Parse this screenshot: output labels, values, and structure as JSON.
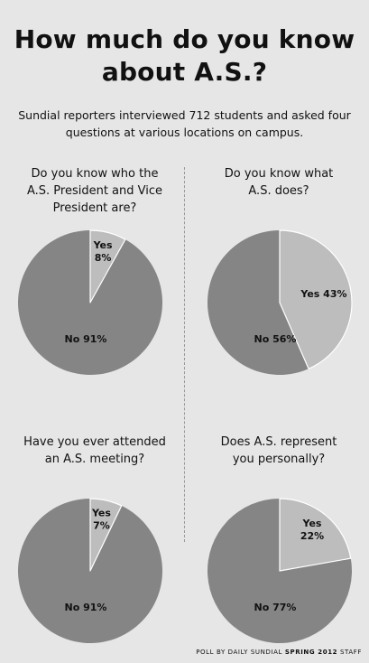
{
  "header": {
    "title_line1": "How much do you know",
    "title_line2": "about A.S.?",
    "subtitle_line1": "Sundial reporters interviewed 712 students and asked four",
    "subtitle_line2": "questions at various locations on campus."
  },
  "colors": {
    "background": "#e6e6e6",
    "no_slice": "#858585",
    "yes_slice": "#bdbdbd",
    "slice_edge": "#ffffff"
  },
  "chart_data": [
    {
      "type": "pie",
      "title_lines": [
        "Do you know who the",
        "A.S. President and Vice",
        "President are?"
      ],
      "slices": [
        {
          "label": "Yes",
          "value_label": "8%",
          "value": 8
        },
        {
          "label": "No",
          "value_label": "91%",
          "value": 91
        }
      ]
    },
    {
      "type": "pie",
      "title_lines": [
        "Do you know what",
        "A.S. does?"
      ],
      "slices": [
        {
          "label": "Yes",
          "value_label": "43%",
          "value": 43
        },
        {
          "label": "No",
          "value_label": "56%",
          "value": 56
        }
      ]
    },
    {
      "type": "pie",
      "title_lines": [
        "Have you ever attended",
        "an A.S. meeting?"
      ],
      "slices": [
        {
          "label": "Yes",
          "value_label": "7%",
          "value": 7
        },
        {
          "label": "No",
          "value_label": "91%",
          "value": 91
        }
      ]
    },
    {
      "type": "pie",
      "title_lines": [
        "Does A.S. represent",
        "you personally?"
      ],
      "slices": [
        {
          "label": "Yes",
          "value_label": "22%",
          "value": 22
        },
        {
          "label": "No",
          "value_label": "77%",
          "value": 77
        }
      ]
    }
  ],
  "footer": {
    "credit_part1": "POLL BY DAILY SUNDIAL",
    "credit_bold": "SPRING 2012",
    "credit_part2": "STAFF"
  }
}
